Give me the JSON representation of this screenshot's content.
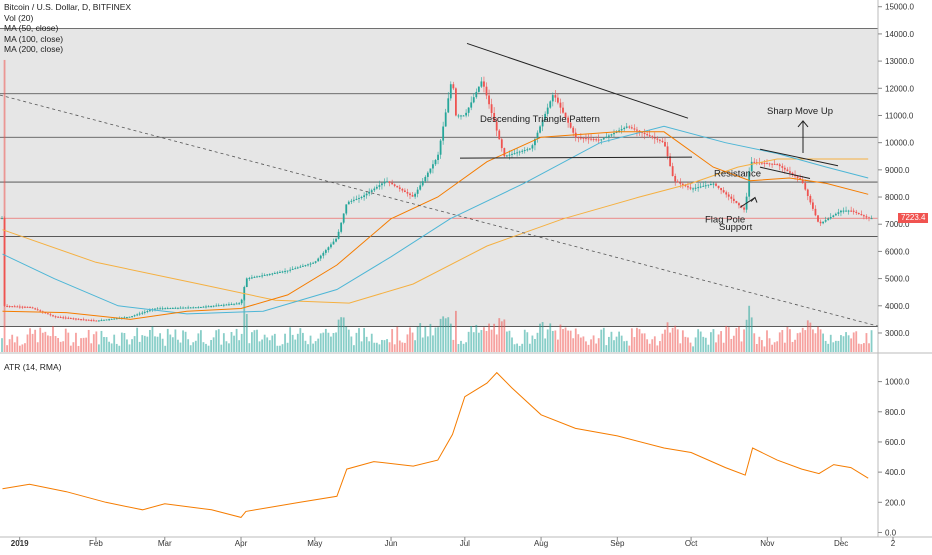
{
  "legend": {
    "title": "Bitcoin / U.S. Dollar, D, BITFINEX",
    "vol": "Vol (20)",
    "ma50": "MA (50, close)",
    "ma100": "MA (100, close)",
    "ma200": "MA (200, close)"
  },
  "atr_legend": "ATR (14, RMA)",
  "last_price": "7223.4",
  "annotations": {
    "descending_triangle": "Descending Triangle Pattern",
    "resistance": "Resistance",
    "flag_pole": "Flag Pole",
    "support": "Support",
    "sharp_move": "Sharp Move Up"
  },
  "colors": {
    "up": "#26a69a",
    "down": "#ef5350",
    "ma50": "#f57c00",
    "ma100": "#4db6d6",
    "ma200": "#f5b041",
    "atr": "#f57c00",
    "shade": "#e6e6e6"
  },
  "chart_data": [
    {
      "type": "line",
      "title": "Bitcoin / U.S. Dollar, D, BITFINEX",
      "x_ticks": [
        "2019",
        "Feb",
        "Mar",
        "Apr",
        "May",
        "Jun",
        "Jul",
        "Aug",
        "Sep",
        "Oct",
        "Nov",
        "Dec",
        "2"
      ],
      "y_ticks": [
        3000,
        4000,
        5000,
        6000,
        7000,
        8000,
        9000,
        10000,
        11000,
        12000,
        13000,
        14000,
        15000
      ],
      "y_tick_labels": [
        "3000.0",
        "4000.0",
        "5000.0",
        "6000.0",
        "7000.0",
        "8000.0",
        "9000.0",
        "10000.0",
        "11000.0",
        "12000.0",
        "13000.0",
        "14000.0",
        "15000.0"
      ],
      "ylim": [
        2300,
        15100
      ],
      "price_path": [
        [
          "2018-12-25",
          4000
        ],
        [
          "2019-01-05",
          3950
        ],
        [
          "2019-01-15",
          3600
        ],
        [
          "2019-02-01",
          3450
        ],
        [
          "2019-02-15",
          3600
        ],
        [
          "2019-02-25",
          3900
        ],
        [
          "2019-03-15",
          3950
        ],
        [
          "2019-04-01",
          4100
        ],
        [
          "2019-04-03",
          5000
        ],
        [
          "2019-04-20",
          5300
        ],
        [
          "2019-05-01",
          5600
        ],
        [
          "2019-05-10",
          6500
        ],
        [
          "2019-05-14",
          7800
        ],
        [
          "2019-05-20",
          8000
        ],
        [
          "2019-05-30",
          8600
        ],
        [
          "2019-06-10",
          8000
        ],
        [
          "2019-06-20",
          9500
        ],
        [
          "2019-06-26",
          12500
        ],
        [
          "2019-06-27",
          11000
        ],
        [
          "2019-07-01",
          11000
        ],
        [
          "2019-07-08",
          12300
        ],
        [
          "2019-07-17",
          9500
        ],
        [
          "2019-07-28",
          9800
        ],
        [
          "2019-08-06",
          11800
        ],
        [
          "2019-08-15",
          10200
        ],
        [
          "2019-08-25",
          10100
        ],
        [
          "2019-09-05",
          10600
        ],
        [
          "2019-09-20",
          10000
        ],
        [
          "2019-09-24",
          8600
        ],
        [
          "2019-10-01",
          8300
        ],
        [
          "2019-10-10",
          8500
        ],
        [
          "2019-10-23",
          7500
        ],
        [
          "2019-10-25",
          9300
        ],
        [
          "2019-11-05",
          9200
        ],
        [
          "2019-11-15",
          8600
        ],
        [
          "2019-11-22",
          7000
        ],
        [
          "2019-12-01",
          7500
        ],
        [
          "2019-12-05",
          7500
        ],
        [
          "2019-12-12",
          7223.4
        ]
      ],
      "ma50": [
        [
          "2018-12-25",
          3800
        ],
        [
          "2019-01-20",
          3750
        ],
        [
          "2019-02-15",
          3500
        ],
        [
          "2019-03-10",
          3800
        ],
        [
          "2019-04-01",
          3900
        ],
        [
          "2019-04-20",
          4400
        ],
        [
          "2019-05-10",
          5500
        ],
        [
          "2019-06-01",
          7200
        ],
        [
          "2019-06-20",
          8000
        ],
        [
          "2019-07-10",
          9300
        ],
        [
          "2019-08-01",
          10200
        ],
        [
          "2019-09-01",
          10400
        ],
        [
          "2019-09-20",
          10400
        ],
        [
          "2019-10-10",
          9100
        ],
        [
          "2019-10-25",
          8600
        ],
        [
          "2019-11-10",
          8700
        ],
        [
          "2019-11-25",
          8500
        ],
        [
          "2019-12-12",
          8100
        ]
      ],
      "ma100": [
        [
          "2018-12-25",
          5900
        ],
        [
          "2019-01-15",
          5000
        ],
        [
          "2019-02-10",
          4000
        ],
        [
          "2019-03-10",
          3700
        ],
        [
          "2019-04-10",
          3800
        ],
        [
          "2019-05-10",
          4600
        ],
        [
          "2019-06-01",
          5800
        ],
        [
          "2019-06-25",
          7200
        ],
        [
          "2019-07-25",
          8500
        ],
        [
          "2019-08-25",
          10000
        ],
        [
          "2019-09-20",
          10600
        ],
        [
          "2019-10-15",
          10000
        ],
        [
          "2019-11-05",
          9600
        ],
        [
          "2019-11-25",
          9100
        ],
        [
          "2019-12-12",
          8700
        ]
      ],
      "ma200": [
        [
          "2018-12-25",
          6800
        ],
        [
          "2019-02-01",
          5600
        ],
        [
          "2019-03-15",
          4800
        ],
        [
          "2019-04-15",
          4200
        ],
        [
          "2019-05-15",
          4100
        ],
        [
          "2019-06-10",
          4800
        ],
        [
          "2019-07-10",
          6200
        ],
        [
          "2019-08-10",
          7200
        ],
        [
          "2019-09-10",
          8000
        ],
        [
          "2019-10-01",
          8500
        ],
        [
          "2019-10-20",
          9100
        ],
        [
          "2019-11-05",
          9400
        ],
        [
          "2019-11-25",
          9400
        ],
        [
          "2019-12-12",
          9400
        ]
      ]
    },
    {
      "type": "line",
      "title": "ATR (14, RMA)",
      "y_ticks": [
        0,
        200,
        400,
        600,
        800,
        1000
      ],
      "y_tick_labels": [
        "0.0",
        "200.0",
        "400.0",
        "600.0",
        "800.0",
        "1000.0"
      ],
      "ylim": [
        -30,
        1130
      ],
      "values": [
        [
          "2018-12-25",
          290
        ],
        [
          "2019-01-05",
          320
        ],
        [
          "2019-01-20",
          270
        ],
        [
          "2019-02-05",
          200
        ],
        [
          "2019-02-20",
          150
        ],
        [
          "2019-03-01",
          190
        ],
        [
          "2019-03-20",
          150
        ],
        [
          "2019-04-01",
          100
        ],
        [
          "2019-04-03",
          140
        ],
        [
          "2019-04-25",
          200
        ],
        [
          "2019-05-10",
          240
        ],
        [
          "2019-05-14",
          420
        ],
        [
          "2019-05-25",
          470
        ],
        [
          "2019-06-10",
          440
        ],
        [
          "2019-06-20",
          480
        ],
        [
          "2019-06-26",
          650
        ],
        [
          "2019-07-01",
          900
        ],
        [
          "2019-07-10",
          990
        ],
        [
          "2019-07-14",
          1060
        ],
        [
          "2019-07-20",
          960
        ],
        [
          "2019-08-01",
          780
        ],
        [
          "2019-08-15",
          690
        ],
        [
          "2019-09-01",
          640
        ],
        [
          "2019-09-20",
          560
        ],
        [
          "2019-10-01",
          530
        ],
        [
          "2019-10-15",
          430
        ],
        [
          "2019-10-23",
          380
        ],
        [
          "2019-10-26",
          560
        ],
        [
          "2019-11-05",
          480
        ],
        [
          "2019-11-15",
          420
        ],
        [
          "2019-11-22",
          390
        ],
        [
          "2019-11-28",
          450
        ],
        [
          "2019-12-05",
          430
        ],
        [
          "2019-12-12",
          360
        ]
      ]
    }
  ]
}
